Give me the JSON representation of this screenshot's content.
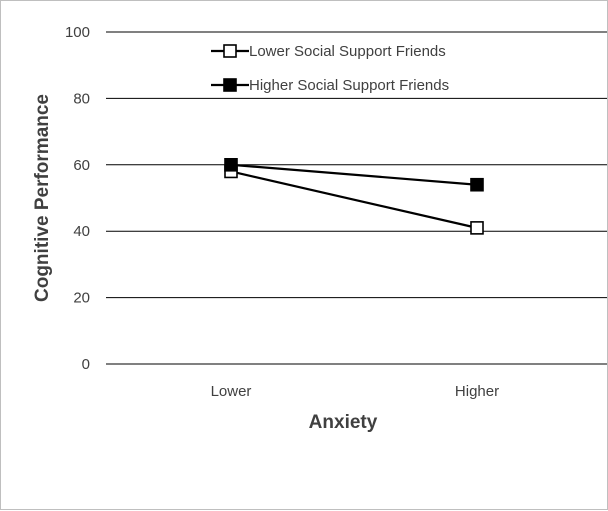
{
  "chart_data": {
    "type": "line",
    "title": "",
    "xlabel": "Anxiety",
    "ylabel": "Cognitive Performance",
    "categories": [
      "Lower",
      "Higher"
    ],
    "ylim": [
      0,
      100
    ],
    "yticks": [
      0,
      20,
      40,
      60,
      80,
      100
    ],
    "grid": "horizontal",
    "legend_position": "top-center",
    "series": [
      {
        "name": "Lower Social Support Friends",
        "values": [
          58,
          41
        ],
        "marker": "open-square",
        "color": "#000000"
      },
      {
        "name": "Higher Social Support Friends",
        "values": [
          60,
          54
        ],
        "marker": "filled-square",
        "color": "#000000"
      }
    ]
  }
}
